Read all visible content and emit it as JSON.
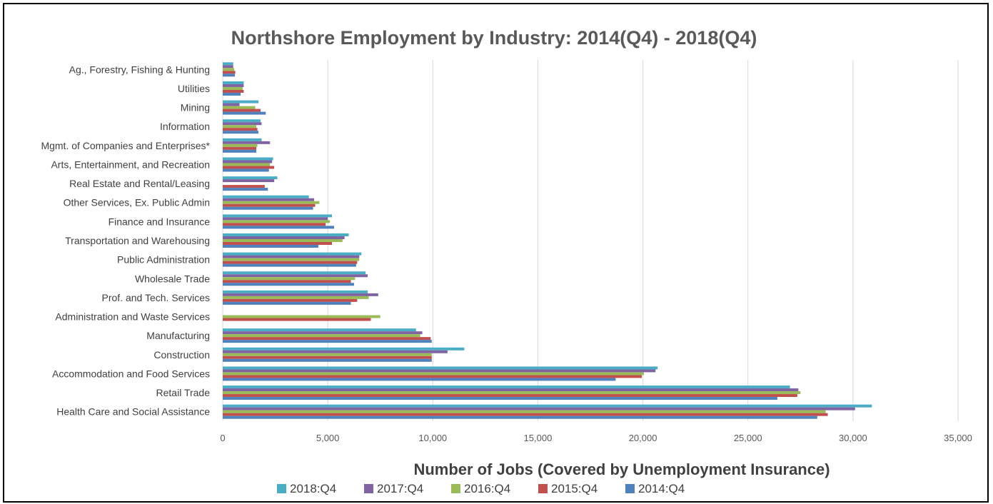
{
  "chart_data": {
    "type": "bar",
    "orientation": "horizontal",
    "title": "Northshore Employment by Industry: 2014(Q4)  - 2018(Q4)",
    "xlabel": "Number of Jobs (Covered by Unemployment Insurance)",
    "ylabel": "",
    "xlim": [
      0,
      35000
    ],
    "x_ticks": [
      "0",
      "5,000",
      "10,000",
      "15,000",
      "20,000",
      "25,000",
      "30,000",
      "35,000"
    ],
    "grid": true,
    "legend_position": "bottom",
    "categories": [
      "Ag., Forestry, Fishing & Hunting",
      "Utilities",
      "Mining",
      "Information",
      "Mgmt. of Companies and Enterprises*",
      "Arts, Entertainment, and Recreation",
      "Real Estate and Rental/Leasing",
      "Other Services, Ex. Public Admin",
      "Finance and Insurance",
      "Transportation and Warehousing",
      "Public Administration",
      "Wholesale Trade",
      "Prof. and Tech. Services",
      "Administration and Waste Services",
      "Manufacturing",
      "Construction",
      "Accommodation and Food Services",
      "Retail Trade",
      "Health Care and Social Assistance"
    ],
    "series": [
      {
        "name": "2018:Q4",
        "color": "#4bacc6",
        "values": [
          500,
          1000,
          1700,
          1800,
          1850,
          2400,
          2600,
          4100,
          5200,
          6000,
          6600,
          6800,
          6900,
          0,
          9200,
          11500,
          20700,
          27000,
          30900
        ]
      },
      {
        "name": "2017:Q4",
        "color": "#8064a2",
        "values": [
          500,
          1000,
          800,
          1850,
          2250,
          2350,
          2450,
          4350,
          5000,
          5800,
          6500,
          6900,
          7400,
          0,
          9500,
          10700,
          20600,
          27400,
          30100
        ]
      },
      {
        "name": "2016:Q4",
        "color": "#9bbb59",
        "values": [
          550,
          950,
          1550,
          1600,
          1650,
          2250,
          0,
          4600,
          5100,
          5700,
          6500,
          6300,
          6950,
          7500,
          9400,
          9950,
          20050,
          27500,
          28700
        ]
      },
      {
        "name": "2015:Q4",
        "color": "#c0504d",
        "values": [
          600,
          1000,
          1800,
          1650,
          1600,
          2450,
          2000,
          4400,
          4900,
          5200,
          6400,
          6100,
          6400,
          7050,
          9900,
          9950,
          19950,
          27350,
          28800
        ]
      },
      {
        "name": "2014:Q4",
        "color": "#4f81bd",
        "values": [
          580,
          850,
          2050,
          1700,
          1600,
          2200,
          2150,
          4300,
          5300,
          4550,
          6350,
          6250,
          6100,
          0,
          9950,
          9950,
          18700,
          26400,
          28300
        ]
      }
    ]
  }
}
